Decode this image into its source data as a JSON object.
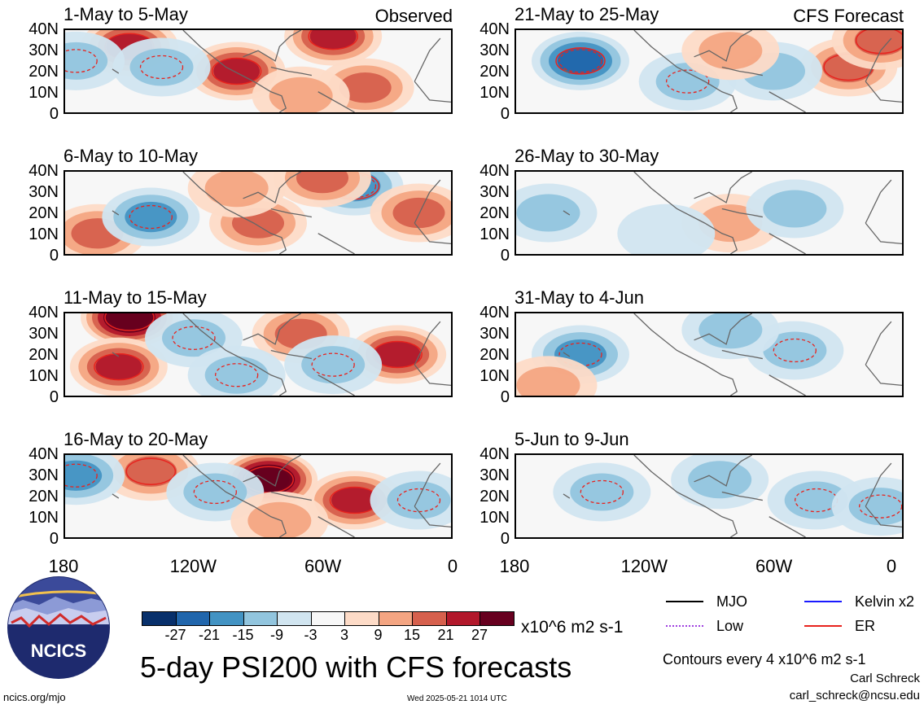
{
  "chart_data": {
    "type": "heatmap",
    "title": "5-day PSI200 with CFS forecasts",
    "units": "x10^6 m2 s-1",
    "contour_note": "Contours every 4 x10^6 m2 s-1",
    "y_tick_labels": [
      "40N",
      "30N",
      "20N",
      "10N",
      "0"
    ],
    "x_tick_labels": [
      "180",
      "120W",
      "60W",
      "0"
    ],
    "ylim": [
      0,
      40
    ],
    "xlim": [
      -180,
      0
    ],
    "colorbar": {
      "labels": [
        "-27",
        "-21",
        "-15",
        "-9",
        "-3",
        "3",
        "9",
        "15",
        "21",
        "27"
      ],
      "colors": [
        "#08306b",
        "#2166ac",
        "#4393c3",
        "#92c5de",
        "#d1e5f0",
        "#f7f7f7",
        "#fddbc7",
        "#f4a582",
        "#d6604d",
        "#b2182b",
        "#67001f"
      ]
    },
    "panels": [
      {
        "title": "1-May to 5-May",
        "corner": "Observed",
        "blobs": [
          {
            "x": -150,
            "y": 32,
            "v": 18
          },
          {
            "x": -100,
            "y": 20,
            "v": 20
          },
          {
            "x": -40,
            "y": 12,
            "v": 10
          },
          {
            "x": -55,
            "y": 37,
            "v": 18
          },
          {
            "x": -175,
            "y": 25,
            "v": -6
          },
          {
            "x": -135,
            "y": 22,
            "v": -8
          },
          {
            "x": -70,
            "y": 8,
            "v": 9
          }
        ]
      },
      {
        "title": "6-May to 10-May",
        "corner": "",
        "blobs": [
          {
            "x": -165,
            "y": 10,
            "v": 10
          },
          {
            "x": -140,
            "y": 18,
            "v": -12
          },
          {
            "x": -45,
            "y": 33,
            "v": -15
          },
          {
            "x": -15,
            "y": 20,
            "v": 12
          },
          {
            "x": -90,
            "y": 15,
            "v": 10
          },
          {
            "x": -100,
            "y": 32,
            "v": 9
          },
          {
            "x": -60,
            "y": 37,
            "v": 12
          }
        ]
      },
      {
        "title": "11-May to 15-May",
        "corner": "",
        "blobs": [
          {
            "x": -150,
            "y": 38,
            "v": 28
          },
          {
            "x": -155,
            "y": 14,
            "v": 16
          },
          {
            "x": -25,
            "y": 20,
            "v": 20
          },
          {
            "x": -70,
            "y": 30,
            "v": 12
          },
          {
            "x": -120,
            "y": 28,
            "v": -6
          },
          {
            "x": -100,
            "y": 10,
            "v": -9
          },
          {
            "x": -55,
            "y": 15,
            "v": -8
          }
        ]
      },
      {
        "title": "16-May to 20-May",
        "corner": "",
        "blobs": [
          {
            "x": -85,
            "y": 28,
            "v": 30
          },
          {
            "x": -45,
            "y": 18,
            "v": 20
          },
          {
            "x": -140,
            "y": 32,
            "v": 15
          },
          {
            "x": -175,
            "y": 30,
            "v": -10
          },
          {
            "x": -110,
            "y": 22,
            "v": -8
          },
          {
            "x": -15,
            "y": 18,
            "v": -6
          },
          {
            "x": -80,
            "y": 8,
            "v": 8
          }
        ]
      }
    ],
    "forecast_panels": [
      {
        "title": "21-May to 25-May",
        "corner": "CFS Forecast",
        "blobs": [
          {
            "x": -150,
            "y": 25,
            "v": -18
          },
          {
            "x": -25,
            "y": 22,
            "v": 14
          },
          {
            "x": -10,
            "y": 35,
            "v": 15
          },
          {
            "x": -100,
            "y": 15,
            "v": -6
          },
          {
            "x": -60,
            "y": 20,
            "v": -4
          },
          {
            "x": -80,
            "y": 30,
            "v": 6
          }
        ]
      },
      {
        "title": "26-May to 30-May",
        "corner": "",
        "blobs": [
          {
            "x": -165,
            "y": 20,
            "v": -5
          },
          {
            "x": -80,
            "y": 15,
            "v": 7
          },
          {
            "x": -50,
            "y": 22,
            "v": -4
          },
          {
            "x": -110,
            "y": 10,
            "v": -3
          }
        ]
      },
      {
        "title": "31-May to 4-Jun",
        "corner": "",
        "blobs": [
          {
            "x": -150,
            "y": 20,
            "v": -10
          },
          {
            "x": -50,
            "y": 22,
            "v": -8
          },
          {
            "x": -80,
            "y": 32,
            "v": -5
          },
          {
            "x": -165,
            "y": 5,
            "v": 4
          }
        ]
      },
      {
        "title": "5-Jun to 9-Jun",
        "corner": "",
        "blobs": [
          {
            "x": -140,
            "y": 22,
            "v": -9
          },
          {
            "x": -40,
            "y": 18,
            "v": -7
          },
          {
            "x": -10,
            "y": 15,
            "v": -8
          },
          {
            "x": -85,
            "y": 28,
            "v": -5
          }
        ]
      }
    ],
    "legend": [
      {
        "label": "MJO",
        "color": "#000000",
        "style": "solid"
      },
      {
        "label": "Kelvin x2",
        "color": "#1a1aff",
        "style": "solid"
      },
      {
        "label": "Low",
        "color": "#a040e0",
        "style": "dotted"
      },
      {
        "label": "ER",
        "color": "#e8231e",
        "style": "solid"
      }
    ]
  },
  "footer": {
    "logo_text": "NCICS",
    "url": "ncics.org/mjo",
    "timestamp": "Wed 2025-05-21 1014 UTC",
    "author": "Carl Schreck",
    "email": "carl_schreck@ncsu.edu"
  }
}
